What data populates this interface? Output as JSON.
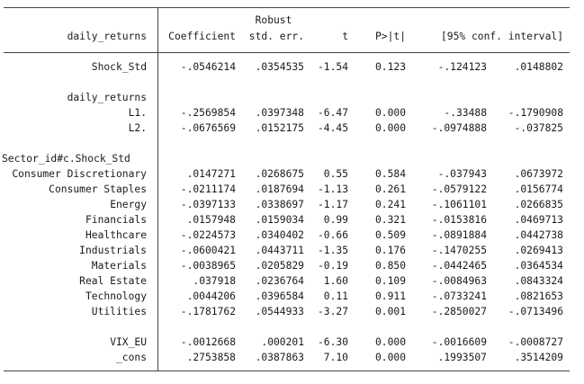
{
  "header": {
    "robust_label": "Robust",
    "depvar": "daily_returns",
    "coefficient": "Coefficient",
    "std_err": "std. err.",
    "t": "t",
    "p": "P>|t|",
    "ci": "[95% conf. interval]"
  },
  "groups": [
    {
      "title": "",
      "rows": [
        {
          "label": "Shock_Std",
          "coef": "-.0546214",
          "se": ".0354535",
          "t": "-1.54",
          "p": "0.123",
          "lo": "-.124123",
          "hi": ".0148802"
        }
      ]
    },
    {
      "title": "daily_returns",
      "rows": [
        {
          "label": "L1.",
          "coef": "-.2569854",
          "se": ".0397348",
          "t": "-6.47",
          "p": "0.000",
          "lo": "-.33488",
          "hi": "-.1790908"
        },
        {
          "label": "L2.",
          "coef": "-.0676569",
          "se": ".0152175",
          "t": "-4.45",
          "p": "0.000",
          "lo": "-.0974888",
          "hi": "-.037825"
        }
      ]
    },
    {
      "title": "Sector_id#c.Shock_Std",
      "rows": [
        {
          "label": "Consumer Discretionary",
          "coef": ".0147271",
          "se": ".0268675",
          "t": "0.55",
          "p": "0.584",
          "lo": "-.037943",
          "hi": ".0673972"
        },
        {
          "label": "Consumer Staples",
          "coef": "-.0211174",
          "se": ".0187694",
          "t": "-1.13",
          "p": "0.261",
          "lo": "-.0579122",
          "hi": ".0156774"
        },
        {
          "label": "Energy",
          "coef": "-.0397133",
          "se": ".0338697",
          "t": "-1.17",
          "p": "0.241",
          "lo": "-.1061101",
          "hi": ".0266835"
        },
        {
          "label": "Financials",
          "coef": ".0157948",
          "se": ".0159034",
          "t": "0.99",
          "p": "0.321",
          "lo": "-.0153816",
          "hi": ".0469713"
        },
        {
          "label": "Healthcare",
          "coef": "-.0224573",
          "se": ".0340402",
          "t": "-0.66",
          "p": "0.509",
          "lo": "-.0891884",
          "hi": ".0442738"
        },
        {
          "label": "Industrials",
          "coef": "-.0600421",
          "se": ".0443711",
          "t": "-1.35",
          "p": "0.176",
          "lo": "-.1470255",
          "hi": ".0269413"
        },
        {
          "label": "Materials",
          "coef": "-.0038965",
          "se": ".0205829",
          "t": "-0.19",
          "p": "0.850",
          "lo": "-.0442465",
          "hi": ".0364534"
        },
        {
          "label": "Real Estate",
          "coef": ".037918",
          "se": ".0236764",
          "t": "1.60",
          "p": "0.109",
          "lo": "-.0084963",
          "hi": ".0843324"
        },
        {
          "label": "Technology",
          "coef": ".0044206",
          "se": ".0396584",
          "t": "0.11",
          "p": "0.911",
          "lo": "-.0733241",
          "hi": ".0821653"
        },
        {
          "label": "Utilities",
          "coef": "-.1781762",
          "se": ".0544933",
          "t": "-3.27",
          "p": "0.001",
          "lo": "-.2850027",
          "hi": "-.0713496"
        }
      ]
    },
    {
      "title": "",
      "rows": [
        {
          "label": "VIX_EU",
          "coef": "-.0012668",
          "se": ".000201",
          "t": "-6.30",
          "p": "0.000",
          "lo": "-.0016609",
          "hi": "-.0008727"
        },
        {
          "label": "_cons",
          "coef": ".2753858",
          "se": ".0387863",
          "t": "7.10",
          "p": "0.000",
          "lo": ".1993507",
          "hi": ".3514209"
        }
      ]
    }
  ]
}
